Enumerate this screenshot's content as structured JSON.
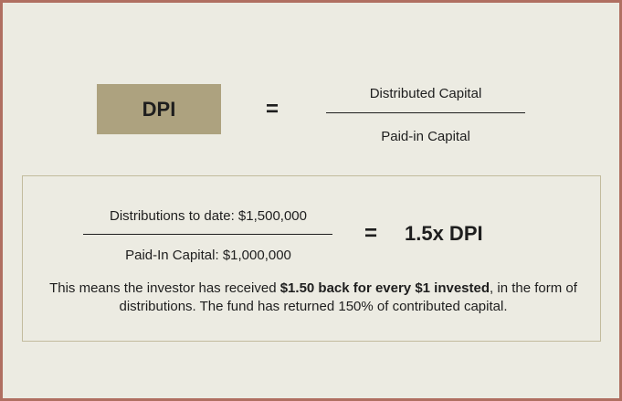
{
  "formula": {
    "label": "DPI",
    "equals": "=",
    "numerator": "Distributed Capital",
    "denominator": "Paid-in Capital"
  },
  "example": {
    "numerator": "Distributions to date: $1,500,000",
    "denominator": "Paid-In Capital: $1,000,000",
    "equals": "=",
    "result": "1.5x DPI",
    "explanation": {
      "before": "This means the investor has received ",
      "bold": "$1.50 back for every $1 invested",
      "after": ", in the form of distributions. The fund has returned 150% of contributed capital."
    }
  }
}
